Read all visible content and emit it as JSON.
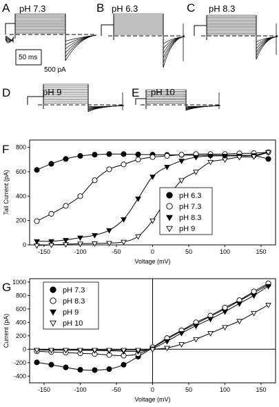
{
  "traces": {
    "panels": [
      {
        "letter": "A",
        "label": "pH 7.3"
      },
      {
        "letter": "B",
        "label": "pH 6.3"
      },
      {
        "letter": "C",
        "label": "pH 8.3"
      },
      {
        "letter": "D",
        "label": "pH 9"
      },
      {
        "letter": "E",
        "label": "pH 10"
      }
    ],
    "scale_time": "50 ms",
    "scale_current": "500 pA"
  },
  "chart_data": [
    {
      "type": "scatter",
      "panel": "F",
      "xlabel": "Voltage (mV)",
      "ylabel": "Tail Current (pA)",
      "xlim": [
        -170,
        170
      ],
      "ylim": [
        0,
        860
      ],
      "xticks": [
        "-150",
        "-100",
        "-50",
        "0",
        "50",
        "100",
        "150"
      ],
      "yticks": [
        "0",
        "200",
        "400",
        "600",
        "800"
      ],
      "legend_position": "right",
      "x": [
        -160,
        -140,
        -120,
        -100,
        -80,
        -60,
        -40,
        -20,
        0,
        20,
        40,
        60,
        80,
        100,
        120,
        140,
        160
      ],
      "series": [
        {
          "name": "pH 6.3",
          "marker": "filled-circle",
          "values": [
            615,
            665,
            705,
            730,
            740,
            745,
            745,
            742,
            740,
            738,
            738,
            735,
            735,
            735,
            735,
            732,
            705
          ]
        },
        {
          "name": "pH 7.3",
          "marker": "open-circle",
          "values": [
            195,
            255,
            320,
            400,
            530,
            620,
            660,
            700,
            720,
            730,
            740,
            745,
            745,
            745,
            750,
            752,
            760
          ]
        },
        {
          "name": "pH 8.3",
          "marker": "filled-triangle",
          "values": [
            30,
            30,
            40,
            60,
            80,
            120,
            210,
            380,
            560,
            640,
            690,
            720,
            730,
            730,
            730,
            735,
            760
          ]
        },
        {
          "name": "pH 9",
          "marker": "open-triangle",
          "values": [
            -5,
            0,
            5,
            10,
            12,
            15,
            25,
            70,
            200,
            380,
            530,
            600,
            680,
            700,
            720,
            725,
            760
          ]
        }
      ]
    },
    {
      "type": "scatter",
      "panel": "G",
      "xlabel": "Voltage (mV)",
      "ylabel": "Current (pA)",
      "xlim": [
        -170,
        170
      ],
      "ylim": [
        -500,
        1050
      ],
      "xticks": [
        "-150",
        "-100",
        "-50",
        "0",
        "50",
        "100",
        "150"
      ],
      "yticks": [
        "-400",
        "-200",
        "0",
        "200",
        "400",
        "600",
        "800",
        "1000"
      ],
      "legend_position": "top-left",
      "x": [
        -160,
        -140,
        -120,
        -100,
        -80,
        -60,
        -40,
        -20,
        0,
        20,
        40,
        60,
        80,
        100,
        120,
        140,
        160
      ],
      "series": [
        {
          "name": "pH 7.3",
          "marker": "filled-circle",
          "values": [
            -195,
            -230,
            -270,
            -305,
            -310,
            -295,
            -230,
            -110,
            20,
            150,
            270,
            380,
            490,
            600,
            720,
            840,
            960
          ]
        },
        {
          "name": "pH 8.3",
          "marker": "open-circle",
          "values": [
            -30,
            -40,
            -50,
            -60,
            -70,
            -85,
            -95,
            -70,
            30,
            165,
            280,
            400,
            500,
            620,
            730,
            860,
            980
          ]
        },
        {
          "name": "pH 9",
          "marker": "filled-triangle",
          "values": [
            -10,
            -10,
            -12,
            -15,
            -18,
            -22,
            -30,
            -30,
            10,
            120,
            240,
            350,
            450,
            560,
            680,
            800,
            940
          ]
        },
        {
          "name": "pH 10",
          "marker": "open-triangle",
          "values": [
            -10,
            -10,
            -10,
            -10,
            -10,
            -10,
            -10,
            -10,
            0,
            20,
            75,
            150,
            240,
            330,
            420,
            540,
            660
          ]
        }
      ]
    }
  ]
}
